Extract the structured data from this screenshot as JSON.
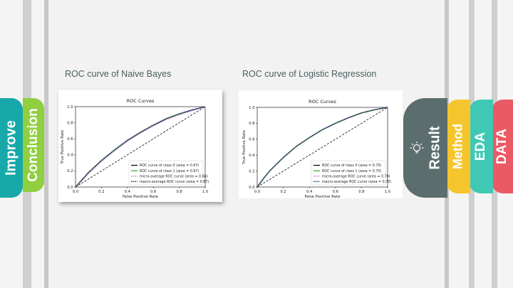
{
  "colors": {
    "improve": "#17a9a9",
    "conclusion": "#8fcf40",
    "result": "#5c6d6e",
    "method": "#f4c52c",
    "eda": "#3fc9b4",
    "data": "#ea5a65",
    "class0": "#1a1a1a",
    "class1": "#2ca02c",
    "micro": "#e377c2",
    "macro": "#1f1f7a"
  },
  "tabs": {
    "left": [
      {
        "id": "improve",
        "label": "Improve"
      },
      {
        "id": "conclusion",
        "label": "Conclusion"
      }
    ],
    "right": [
      {
        "id": "result",
        "label": "Result",
        "icon": "lightbulb-icon"
      },
      {
        "id": "method",
        "label": "Method"
      },
      {
        "id": "eda",
        "label": "EDA"
      },
      {
        "id": "data",
        "label": "DATA"
      }
    ]
  },
  "sections": [
    {
      "title": "ROC curve of Naive Bayes"
    },
    {
      "title": "ROC curve of Logistic Regression"
    }
  ],
  "chart_data": [
    {
      "type": "line",
      "title": "ROC Curves",
      "xlabel": "False Positive Rate",
      "ylabel": "True Positive Rate",
      "xlim": [
        0,
        1
      ],
      "ylim": [
        0,
        1
      ],
      "xticks": [
        "0.0",
        "0.2",
        "0.4",
        "0.6",
        "0.8",
        "1.0"
      ],
      "yticks": [
        "0.0",
        "0.2",
        "0.4",
        "0.6",
        "0.8",
        "1.0"
      ],
      "legend_position": "lower-right",
      "x": [
        0,
        0.05,
        0.1,
        0.2,
        0.3,
        0.4,
        0.5,
        0.6,
        0.7,
        0.8,
        0.9,
        1.0
      ],
      "series": [
        {
          "name": "ROC curve of class 0 (area = 0.67)",
          "values": [
            0,
            0.09,
            0.18,
            0.33,
            0.46,
            0.58,
            0.68,
            0.77,
            0.85,
            0.91,
            0.96,
            1.0
          ]
        },
        {
          "name": "ROC curve of class 1 (area = 0.67)",
          "values": [
            0,
            0.09,
            0.18,
            0.33,
            0.46,
            0.58,
            0.68,
            0.77,
            0.85,
            0.91,
            0.96,
            1.0
          ]
        },
        {
          "name": "micro-average ROC curve (area = 0.66)",
          "values": [
            0,
            0.08,
            0.17,
            0.32,
            0.45,
            0.57,
            0.67,
            0.76,
            0.84,
            0.9,
            0.95,
            1.0
          ]
        },
        {
          "name": "macro-average ROC curve (area = 0.67)",
          "values": [
            0,
            0.09,
            0.18,
            0.33,
            0.46,
            0.58,
            0.68,
            0.77,
            0.85,
            0.91,
            0.96,
            1.0
          ]
        }
      ]
    },
    {
      "type": "line",
      "title": "ROC Curves",
      "xlabel": "False Positive Rate",
      "ylabel": "True Positive Rate",
      "xlim": [
        0,
        1
      ],
      "ylim": [
        0,
        1
      ],
      "xticks": [
        "0.0",
        "0.2",
        "0.4",
        "0.6",
        "0.8",
        "1.0"
      ],
      "yticks": [
        "0.0",
        "0.2",
        "0.4",
        "0.6",
        "0.8",
        "1.0"
      ],
      "legend_position": "lower-right",
      "x": [
        0,
        0.05,
        0.1,
        0.2,
        0.3,
        0.4,
        0.5,
        0.6,
        0.7,
        0.8,
        0.9,
        1.0
      ],
      "series": [
        {
          "name": "ROC curve of class 0 (area = 0.70)",
          "values": [
            0,
            0.11,
            0.21,
            0.37,
            0.51,
            0.62,
            0.72,
            0.8,
            0.87,
            0.93,
            0.97,
            1.0
          ]
        },
        {
          "name": "ROC curve of class 1 (area = 0.70)",
          "values": [
            0,
            0.11,
            0.21,
            0.37,
            0.51,
            0.62,
            0.72,
            0.8,
            0.87,
            0.93,
            0.97,
            1.0
          ]
        },
        {
          "name": "micro-average ROC curve (area = 0.70)",
          "values": [
            0,
            0.11,
            0.21,
            0.37,
            0.51,
            0.62,
            0.72,
            0.8,
            0.87,
            0.93,
            0.97,
            1.0
          ]
        },
        {
          "name": "macro-average ROC curve (area = 0.70)",
          "values": [
            0,
            0.11,
            0.21,
            0.37,
            0.51,
            0.62,
            0.72,
            0.8,
            0.87,
            0.93,
            0.97,
            1.0
          ]
        }
      ]
    }
  ]
}
